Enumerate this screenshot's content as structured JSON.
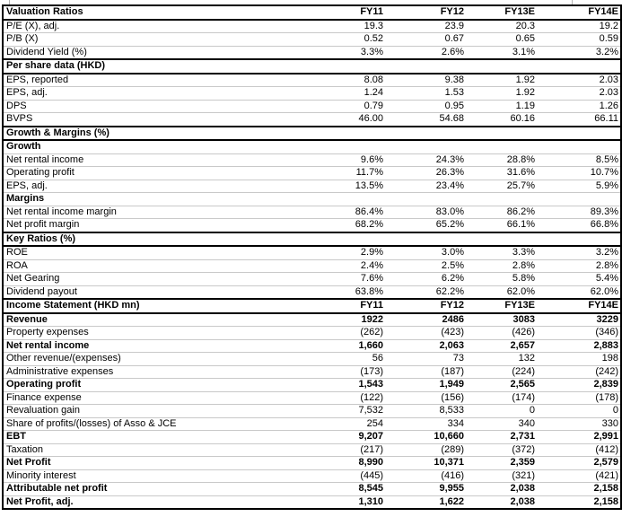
{
  "table": {
    "columns": [
      "FY11",
      "FY12",
      "FY13E",
      "FY14E"
    ],
    "sections": [
      {
        "title": "Valuation Ratios",
        "show_columns": true,
        "rows": [
          {
            "label": "P/E (X), adj.",
            "values": [
              "19.3",
              "23.9",
              "20.3",
              "19.2"
            ]
          },
          {
            "label": "P/B (X)",
            "values": [
              "0.52",
              "0.67",
              "0.65",
              "0.59"
            ]
          },
          {
            "label": "Dividend Yield (%)",
            "values": [
              "3.3%",
              "2.6%",
              "3.1%",
              "3.2%"
            ]
          }
        ]
      },
      {
        "title": "Per share data (HKD)",
        "show_columns": false,
        "rows": [
          {
            "label": "EPS, reported",
            "values": [
              "8.08",
              "9.38",
              "1.92",
              "2.03"
            ]
          },
          {
            "label": "EPS, adj.",
            "values": [
              "1.24",
              "1.53",
              "1.92",
              "2.03"
            ]
          },
          {
            "label": "DPS",
            "values": [
              "0.79",
              "0.95",
              "1.19",
              "1.26"
            ]
          },
          {
            "label": "BVPS",
            "values": [
              "46.00",
              "54.68",
              "60.16",
              "66.11"
            ]
          }
        ]
      },
      {
        "title": "Growth & Margins (%)",
        "show_columns": false,
        "rows": [
          {
            "label": "Growth",
            "subheader": true
          },
          {
            "label": "Net rental income",
            "values": [
              "9.6%",
              "24.3%",
              "28.8%",
              "8.5%"
            ]
          },
          {
            "label": "Operating profit",
            "values": [
              "11.7%",
              "26.3%",
              "31.6%",
              "10.7%"
            ]
          },
          {
            "label": "EPS, adj.",
            "values": [
              "13.5%",
              "23.4%",
              "25.7%",
              "5.9%"
            ]
          },
          {
            "label": "Margins",
            "subheader": true
          },
          {
            "label": "Net rental income margin",
            "values": [
              "86.4%",
              "83.0%",
              "86.2%",
              "89.3%"
            ]
          },
          {
            "label": "Net profit margin",
            "values": [
              "68.2%",
              "65.2%",
              "66.1%",
              "66.8%"
            ]
          }
        ]
      },
      {
        "title": "Key Ratios (%)",
        "show_columns": false,
        "rows": [
          {
            "label": "ROE",
            "values": [
              "2.9%",
              "3.0%",
              "3.3%",
              "3.2%"
            ]
          },
          {
            "label": "ROA",
            "values": [
              "2.4%",
              "2.5%",
              "2.8%",
              "2.8%"
            ]
          },
          {
            "label": "Net Gearing",
            "values": [
              "7.6%",
              "6.2%",
              "5.8%",
              "5.4%"
            ]
          },
          {
            "label": "Dividend payout",
            "values": [
              "63.8%",
              "62.2%",
              "62.0%",
              "62.0%"
            ]
          }
        ]
      },
      {
        "title": "Income Statement (HKD mn)",
        "show_columns": true,
        "rows": [
          {
            "label": "Revenue",
            "values": [
              "1922",
              "2486",
              "3083",
              "3229"
            ],
            "bold": true
          },
          {
            "label": "Property expenses",
            "values": [
              "(262)",
              "(423)",
              "(426)",
              "(346)"
            ]
          },
          {
            "label": "Net rental income",
            "values": [
              "1,660",
              "2,063",
              "2,657",
              "2,883"
            ],
            "bold": true
          },
          {
            "label": "Other revenue/(expenses)",
            "values": [
              "56",
              "73",
              "132",
              "198"
            ]
          },
          {
            "label": "Administrative expenses",
            "values": [
              "(173)",
              "(187)",
              "(224)",
              "(242)"
            ]
          },
          {
            "label": "Operating profit",
            "values": [
              "1,543",
              "1,949",
              "2,565",
              "2,839"
            ],
            "bold": true
          },
          {
            "label": "Finance expense",
            "values": [
              "(122)",
              "(156)",
              "(174)",
              "(178)"
            ]
          },
          {
            "label": "Revaluation gain",
            "values": [
              "7,532",
              "8,533",
              "0",
              "0"
            ]
          },
          {
            "label": "Share of profits/(losses) of Asso & JCE",
            "values": [
              "254",
              "334",
              "340",
              "330"
            ]
          },
          {
            "label": "EBT",
            "values": [
              "9,207",
              "10,660",
              "2,731",
              "2,991"
            ],
            "bold": true
          },
          {
            "label": "Taxation",
            "values": [
              "(217)",
              "(289)",
              "(372)",
              "(412)"
            ]
          },
          {
            "label": "Net Profit",
            "values": [
              "8,990",
              "10,371",
              "2,359",
              "2,579"
            ],
            "bold": true
          },
          {
            "label": "Minority interest",
            "values": [
              "(445)",
              "(416)",
              "(321)",
              "(421)"
            ]
          },
          {
            "label": "Attributable net profit",
            "values": [
              "8,545",
              "9,955",
              "2,038",
              "2,158"
            ],
            "bold": true
          },
          {
            "label": "Net Profit, adj.",
            "values": [
              "1,310",
              "1,622",
              "2,038",
              "2,158"
            ],
            "bold": true
          }
        ]
      }
    ]
  }
}
